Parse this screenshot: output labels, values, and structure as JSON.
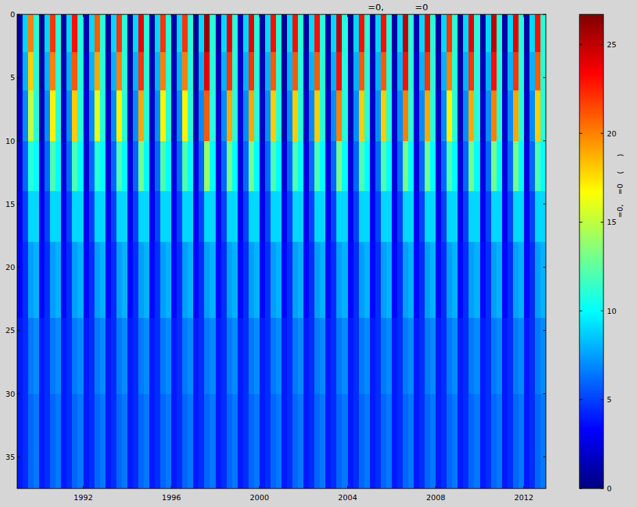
{
  "chart_data": {
    "type": "heatmap",
    "title": "=0,           =0",
    "colorbar_label": "=0,    =0    (      )",
    "xlim": [
      1989,
      2013
    ],
    "ylim": [
      37.5,
      0
    ],
    "xticks": [
      1992,
      1996,
      2000,
      2004,
      2008,
      2012
    ],
    "yticks": [
      0,
      5,
      10,
      15,
      20,
      25,
      30,
      35
    ],
    "colorbar_range": [
      0,
      26.7
    ],
    "colorbar_ticks": [
      0,
      5,
      10,
      15,
      20,
      25
    ],
    "x_edges": [
      1989,
      1989.25,
      1989.5,
      1989.75,
      1990,
      1990.25,
      1990.5,
      1990.75,
      1991,
      1991.25,
      1991.5,
      1991.75,
      1992,
      1992.25,
      1992.5,
      1992.75,
      1993,
      1993.25,
      1993.5,
      1993.75,
      1994,
      1994.25,
      1994.5,
      1994.75,
      1995,
      1995.25,
      1995.5,
      1995.75,
      1996,
      1996.25,
      1996.5,
      1996.75,
      1997,
      1997.25,
      1997.5,
      1997.75,
      1998,
      1998.25,
      1998.5,
      1998.75,
      1999,
      1999.25,
      1999.5,
      1999.75,
      2000,
      2000.25,
      2000.5,
      2000.75,
      2001,
      2001.25,
      2001.5,
      2001.75,
      2002,
      2002.25,
      2002.5,
      2002.75,
      2003,
      2003.25,
      2003.5,
      2003.75,
      2004,
      2004.25,
      2004.5,
      2004.75,
      2005,
      2005.25,
      2005.5,
      2005.75,
      2006,
      2006.25,
      2006.5,
      2006.75,
      2007,
      2007.25,
      2007.5,
      2007.75,
      2008,
      2008.25,
      2008.5,
      2008.75,
      2009,
      2009.25,
      2009.5,
      2009.75,
      2010,
      2010.25,
      2010.5,
      2010.75,
      2011,
      2011.25,
      2011.5,
      2011.75,
      2012,
      2012.25,
      2012.5,
      2012.75,
      2013
    ],
    "y_edges": [
      0,
      3,
      6,
      10,
      14,
      18,
      24,
      30,
      37.5
    ],
    "values": [
      [
        1,
        9,
        20,
        11,
        0.5,
        9,
        22,
        11,
        1,
        9,
        23,
        11,
        1.5,
        9,
        21,
        11,
        1,
        9,
        22,
        11,
        0.5,
        9,
        24,
        11,
        1,
        9,
        22,
        11,
        1,
        9,
        22,
        11,
        0.5,
        9,
        26,
        11,
        1,
        9,
        24,
        11,
        1.5,
        9,
        24,
        11,
        1,
        9,
        23,
        11,
        0.5,
        9,
        23,
        11,
        1,
        9,
        23,
        11,
        1,
        9,
        25,
        11,
        0.5,
        9,
        23,
        11,
        1,
        9,
        23,
        11,
        1,
        9,
        25,
        11,
        1.5,
        9,
        24,
        11,
        1,
        9,
        22,
        11,
        0.5,
        9,
        24,
        11,
        1,
        9,
        25,
        11,
        1,
        9,
        24,
        11,
        1,
        9,
        23,
        11
      ],
      [
        1.5,
        8,
        18,
        11,
        1,
        8,
        20,
        11,
        1.5,
        8,
        21,
        11,
        2,
        8,
        19,
        11,
        1.5,
        8,
        20,
        11,
        1,
        8,
        22,
        11,
        1.5,
        8,
        20,
        11,
        1.5,
        8,
        20,
        11,
        1,
        8,
        24,
        11,
        1.5,
        8,
        22,
        11,
        2,
        8,
        22,
        11,
        1.5,
        8,
        21,
        11,
        1,
        8,
        21,
        11,
        1.5,
        8,
        21,
        11,
        1.5,
        8,
        23,
        11,
        1,
        8,
        21,
        11,
        1.5,
        8,
        21,
        11,
        1.5,
        8,
        23,
        11,
        2,
        8,
        22,
        11,
        1.5,
        8,
        20,
        11,
        1,
        8,
        22,
        11,
        1.5,
        8,
        23,
        11,
        1.5,
        8,
        22,
        11,
        1.5,
        8,
        21,
        11
      ],
      [
        2,
        7,
        15,
        11,
        1.5,
        7,
        17,
        11,
        2,
        7,
        18,
        11,
        2.5,
        7,
        16,
        11,
        2,
        7,
        17,
        11,
        1.5,
        7,
        19,
        11,
        2,
        7,
        17,
        11,
        2,
        7,
        17,
        11,
        1.5,
        7,
        21,
        11,
        2,
        7,
        19,
        11,
        2.5,
        7,
        19,
        11,
        2,
        7,
        18,
        11,
        1.5,
        7,
        18,
        11,
        2,
        7,
        18,
        11,
        2,
        7,
        20,
        11,
        1.5,
        7,
        18,
        11,
        2,
        7,
        18,
        11,
        2,
        7,
        20,
        11,
        2.5,
        7,
        19,
        11,
        2,
        7,
        17,
        11,
        1.5,
        7,
        19,
        11,
        2,
        7,
        20,
        11,
        2,
        7,
        19,
        11,
        2,
        7,
        18,
        11
      ],
      [
        2.5,
        6,
        11,
        10,
        2.5,
        6,
        12,
        10,
        2.5,
        6,
        12,
        10,
        2.5,
        6,
        11,
        10,
        2.5,
        6,
        12,
        10,
        2.5,
        6,
        13,
        10,
        2.5,
        6,
        12,
        10,
        2.5,
        6,
        12,
        10,
        2.5,
        6,
        14,
        10,
        2.5,
        6,
        13,
        10,
        2.5,
        6,
        13,
        10,
        2.5,
        6,
        12,
        10,
        2.5,
        6,
        12,
        10,
        2.5,
        6,
        12,
        10,
        2.5,
        6,
        13,
        10,
        2.5,
        6,
        12,
        10,
        2.5,
        6,
        12,
        10,
        2.5,
        6,
        13,
        10,
        2.5,
        6,
        13,
        10,
        2.5,
        6,
        12,
        10,
        2.5,
        6,
        13,
        10,
        2.5,
        6,
        13,
        10,
        2.5,
        6,
        13,
        10,
        2.5,
        6,
        12,
        10
      ],
      [
        3,
        5,
        9,
        9,
        3,
        5,
        9,
        9,
        3,
        5,
        9,
        9,
        3,
        5,
        9,
        9,
        3,
        5,
        9,
        9,
        3,
        5,
        9,
        9,
        3,
        5,
        9,
        9,
        3,
        5,
        9,
        9,
        3,
        5,
        9,
        9,
        3,
        5,
        9,
        9,
        3,
        5,
        9,
        9,
        3,
        5,
        9,
        9,
        3,
        5,
        9,
        9,
        3,
        5,
        9,
        9,
        3,
        5,
        9,
        9,
        3,
        5,
        9,
        9,
        3,
        5,
        9,
        9,
        3,
        5,
        9,
        9,
        3,
        5,
        9,
        9,
        3,
        5,
        9,
        9,
        3,
        5,
        9,
        9,
        3,
        5,
        9,
        9,
        3,
        5,
        9,
        9,
        3,
        5,
        9,
        9
      ],
      [
        3.5,
        4.5,
        7.5,
        8,
        3.5,
        4.5,
        7.5,
        8,
        3.5,
        4.5,
        7.5,
        8,
        3.5,
        4.5,
        7.5,
        8,
        3.5,
        4.5,
        7.5,
        8,
        3.5,
        4.5,
        7.5,
        8,
        3.5,
        4.5,
        7.5,
        8,
        3.5,
        4.5,
        7.5,
        8,
        3.5,
        4.5,
        7.5,
        8,
        3.5,
        4.5,
        7.5,
        8,
        3.5,
        4.5,
        7.5,
        8,
        3.5,
        4.5,
        7.5,
        8,
        3.5,
        4.5,
        7.5,
        8,
        3.5,
        4.5,
        7.5,
        8,
        3.5,
        4.5,
        7.5,
        8,
        3.5,
        4.5,
        7.5,
        8,
        3.5,
        4.5,
        7.5,
        8,
        3.5,
        4.5,
        7.5,
        8,
        3.5,
        4.5,
        7.5,
        8,
        3.5,
        4.5,
        7.5,
        8,
        3.5,
        4.5,
        7.5,
        8,
        3.5,
        4.5,
        7.5,
        8,
        3.5,
        4.5,
        7.5,
        8,
        3.5,
        4.5,
        7.5,
        8
      ],
      [
        4,
        4.5,
        6.5,
        7,
        4,
        4.5,
        6.5,
        7,
        4,
        4.5,
        6.5,
        7,
        4,
        4.5,
        6.5,
        7,
        4,
        4.5,
        6.5,
        7,
        4,
        4.5,
        6.5,
        7,
        4,
        4.5,
        6.5,
        7,
        4,
        4.5,
        6.5,
        7,
        4,
        4.5,
        6.5,
        7,
        4,
        4.5,
        6.5,
        7,
        4,
        4.5,
        6.5,
        7,
        4,
        4.5,
        6.5,
        7,
        4,
        4.5,
        6.5,
        7,
        4,
        4.5,
        6.5,
        7,
        4,
        4.5,
        6.5,
        7,
        4,
        4.5,
        6.5,
        7,
        4,
        4.5,
        6.5,
        7,
        4,
        4.5,
        6.5,
        7,
        4,
        4.5,
        6.5,
        7,
        4,
        4.5,
        6.5,
        7,
        4,
        4.5,
        6.5,
        7,
        4,
        4.5,
        6.5,
        7,
        4,
        4.5,
        6.5,
        7,
        4,
        4.5,
        6.5,
        7
      ],
      [
        4,
        4.5,
        6,
        6.5,
        4,
        4.5,
        6,
        6.5,
        4,
        4.5,
        6,
        6.5,
        4,
        4.5,
        6,
        6.5,
        4,
        4.5,
        6,
        6.5,
        4,
        4.5,
        6,
        6.5,
        4,
        4.5,
        6,
        6.5,
        4,
        4.5,
        6,
        6.5,
        4,
        4.5,
        6,
        6.5,
        4,
        4.5,
        6,
        6.5,
        4,
        4.5,
        6,
        6.5,
        4,
        4.5,
        6,
        6.5,
        4,
        4.5,
        6,
        6.5,
        4,
        4.5,
        6,
        6.5,
        4,
        4.5,
        6,
        6.5,
        4,
        4.5,
        6,
        6.5,
        4,
        4.5,
        6,
        6.5,
        4,
        4.5,
        6,
        6.5,
        4,
        4.5,
        6,
        6.5,
        4,
        4.5,
        6,
        6.5,
        4,
        4.5,
        6,
        6.5,
        4,
        4.5,
        6,
        6.5,
        4,
        4.5,
        6,
        6.5,
        4,
        4.5,
        6,
        6.5
      ]
    ]
  }
}
